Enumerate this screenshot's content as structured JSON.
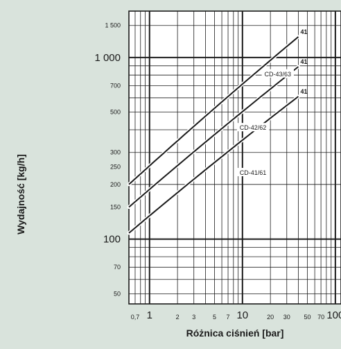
{
  "chart_data": {
    "type": "line",
    "xscale": "log",
    "yscale": "log",
    "xlim": [
      0.6,
      115
    ],
    "ylim": [
      44,
      1800
    ],
    "xlabel": "Różnica ciśnień [bar]",
    "ylabel": "Wydajność [kg/h]",
    "xticks": [
      {
        "value": 0.7,
        "label": "0,7",
        "size": "small"
      },
      {
        "value": 1,
        "label": "1",
        "size": "large"
      },
      {
        "value": 2,
        "label": "2",
        "size": "small"
      },
      {
        "value": 3,
        "label": "3",
        "size": "small"
      },
      {
        "value": 5,
        "label": "5",
        "size": "small"
      },
      {
        "value": 7,
        "label": "7",
        "size": "small"
      },
      {
        "value": 10,
        "label": "10",
        "size": "large"
      },
      {
        "value": 20,
        "label": "20",
        "size": "small"
      },
      {
        "value": 30,
        "label": "30",
        "size": "small"
      },
      {
        "value": 50,
        "label": "50",
        "size": "small"
      },
      {
        "value": 70,
        "label": "70",
        "size": "small"
      },
      {
        "value": 100,
        "label": "100",
        "size": "large"
      }
    ],
    "yticks": [
      {
        "value": 50,
        "label": "50",
        "size": "small"
      },
      {
        "value": 70,
        "label": "70",
        "size": "small"
      },
      {
        "value": 100,
        "label": "100",
        "size": "large"
      },
      {
        "value": 150,
        "label": "150",
        "size": "small"
      },
      {
        "value": 200,
        "label": "200",
        "size": "small"
      },
      {
        "value": 250,
        "label": "250",
        "size": "small"
      },
      {
        "value": 300,
        "label": "300",
        "size": "small"
      },
      {
        "value": 500,
        "label": "500",
        "size": "small"
      },
      {
        "value": 700,
        "label": "700",
        "size": "small"
      },
      {
        "value": 1000,
        "label": "1 000",
        "size": "large"
      },
      {
        "value": 1500,
        "label": "1 500",
        "size": "small"
      }
    ],
    "grid": true,
    "series": [
      {
        "name": "CD-43/63",
        "x": [
          0.6,
          40
        ],
        "y": [
          200,
          1300
        ],
        "end_label": "41"
      },
      {
        "name": "CD-42/62",
        "x": [
          0.6,
          40
        ],
        "y": [
          150,
          890
        ],
        "end_label": "41"
      },
      {
        "name": "CD-41/61",
        "x": [
          0.6,
          40
        ],
        "y": [
          108,
          610
        ],
        "end_label": "41"
      }
    ],
    "annotations": [
      {
        "text": "CD-43/63",
        "x": 24,
        "y": 810
      },
      {
        "text": "CD-42/62",
        "x": 13,
        "y": 410
      },
      {
        "text": "CD-41/61",
        "x": 13,
        "y": 232
      }
    ],
    "colors": {
      "background": "#d9e3dc",
      "plot": "#ffffff",
      "line": "#1a1a1a",
      "grid": "#1a1a1a"
    }
  }
}
